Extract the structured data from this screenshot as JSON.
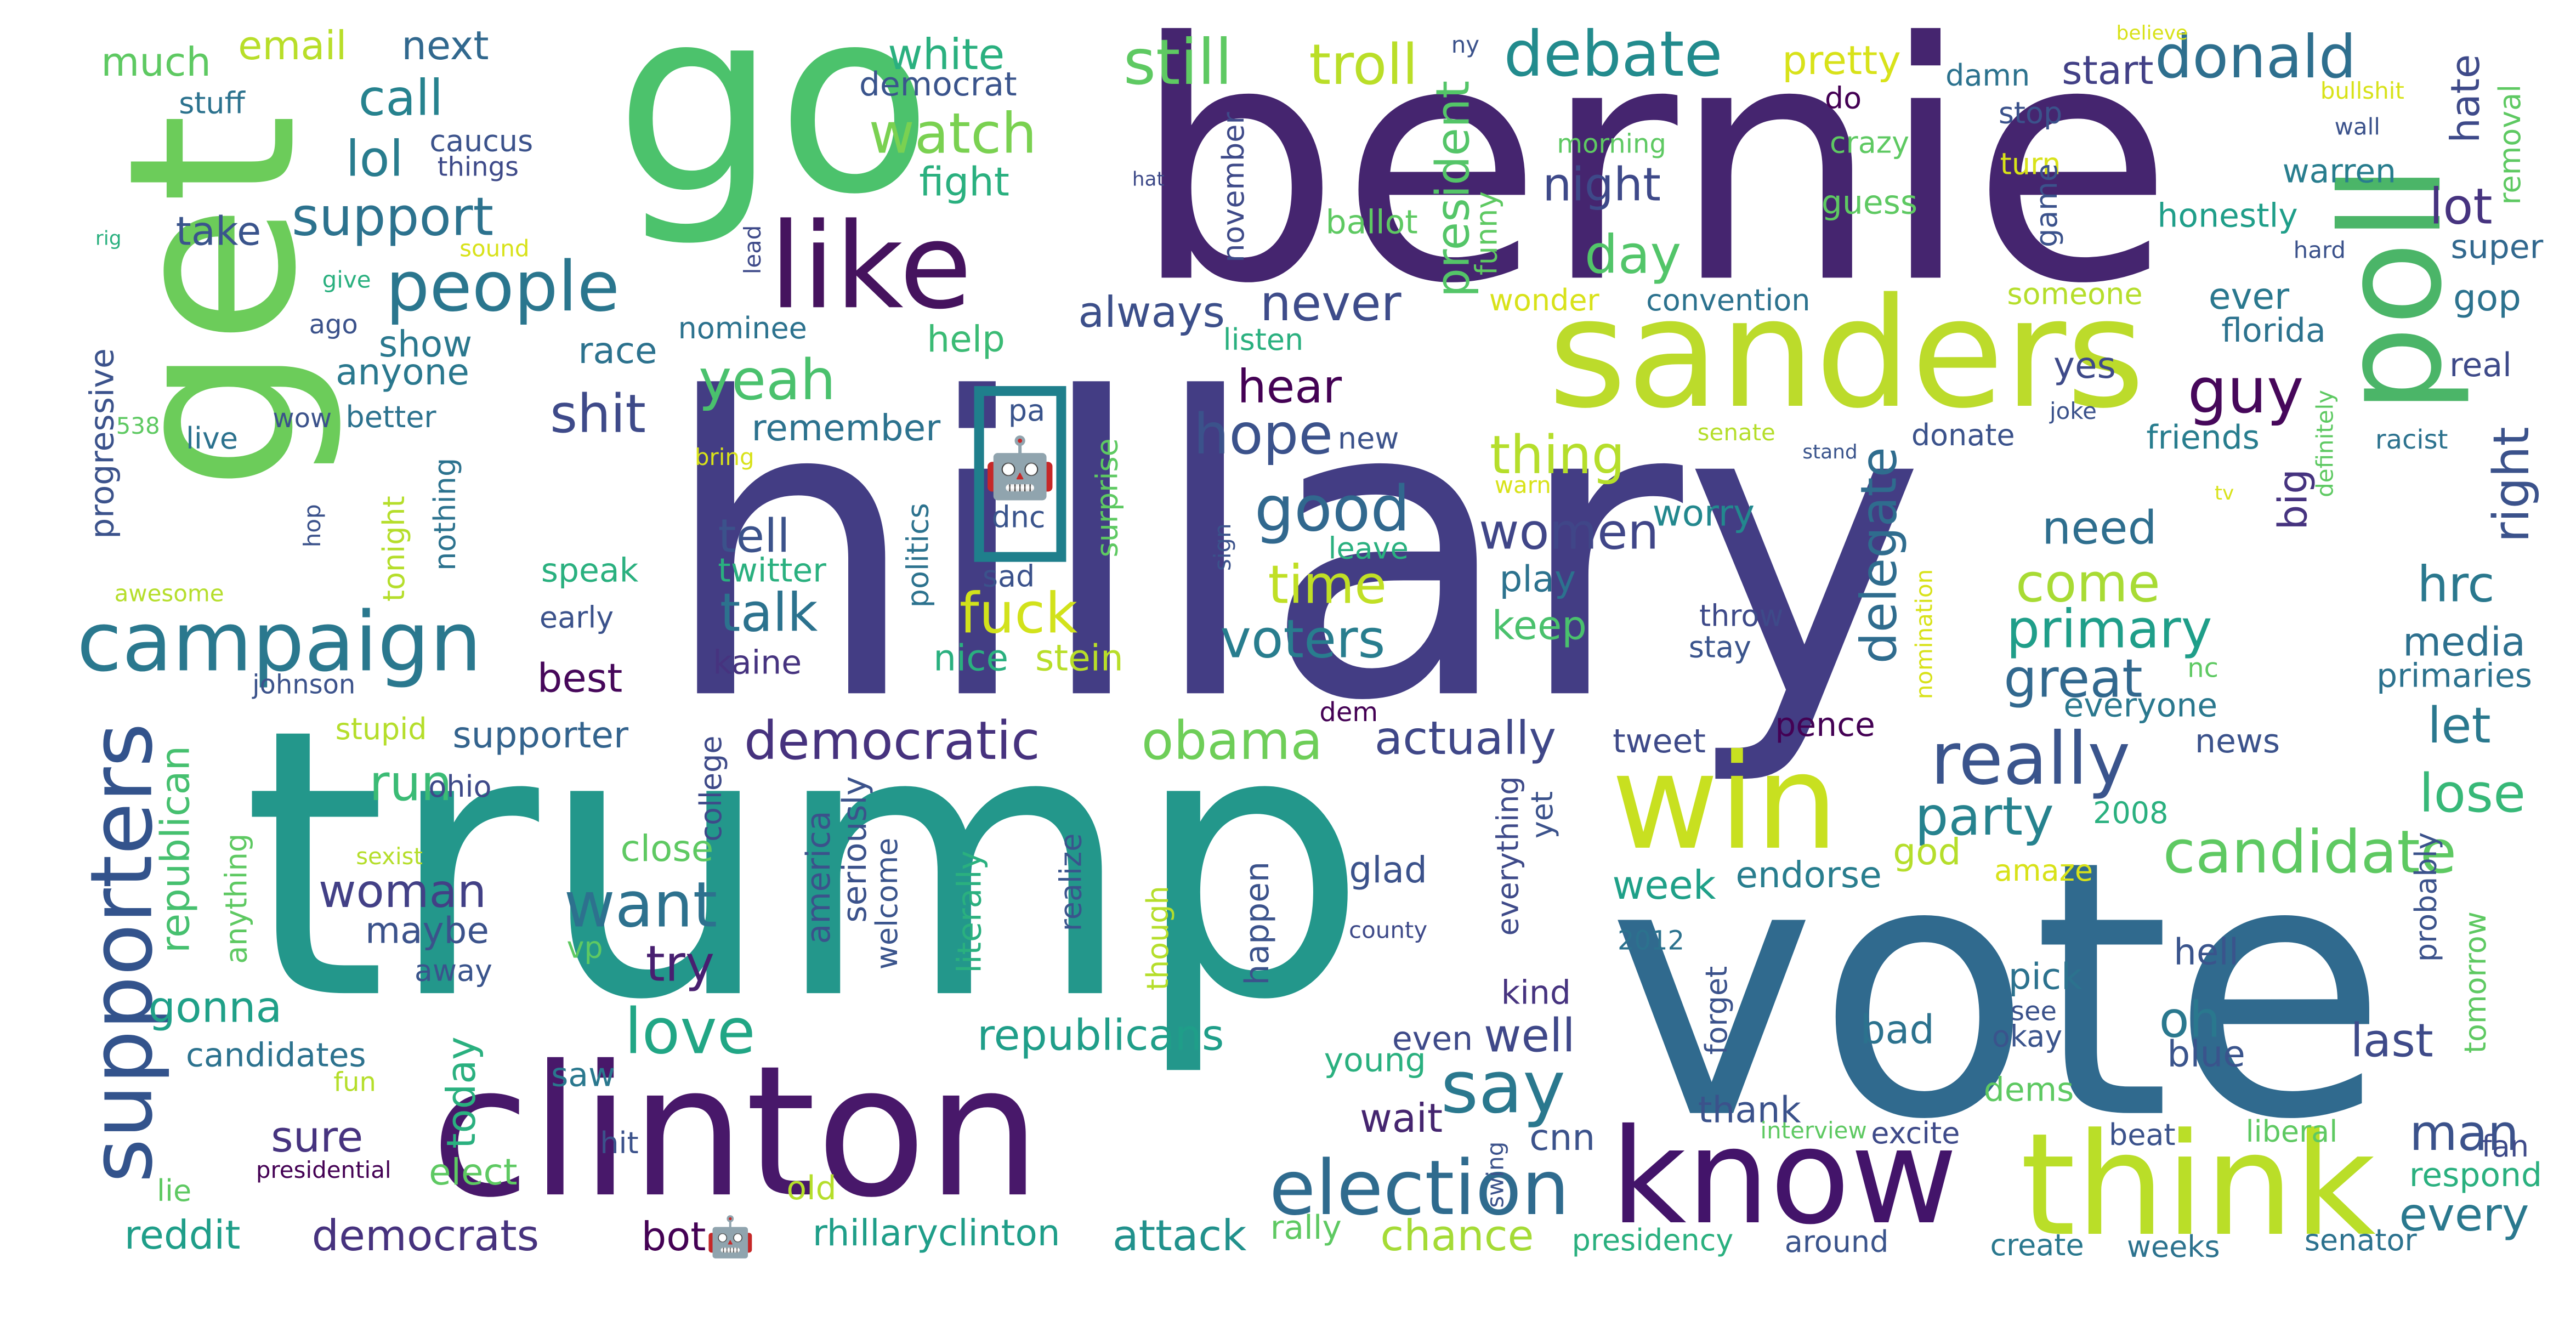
{
  "words": [
    {
      "t": "hillary",
      "c": "#433d84"
    },
    {
      "t": "trump",
      "c": "#23978b"
    },
    {
      "t": "bernie",
      "c": "#45256f"
    },
    {
      "t": "vote",
      "c": "#306a8e"
    },
    {
      "t": "go",
      "c": "#4cc26c"
    },
    {
      "t": "get",
      "c": "#6ccc5a"
    },
    {
      "t": "clinton",
      "c": "#48186a"
    },
    {
      "t": "sanders",
      "c": "#bcdb2b"
    },
    {
      "t": "think",
      "c": "#bade28"
    },
    {
      "t": "know",
      "c": "#43146a"
    },
    {
      "t": "poll",
      "c": "#4bb568"
    },
    {
      "t": "win",
      "c": "#c8e020"
    },
    {
      "t": "like",
      "c": "#45135e"
    },
    {
      "t": "campaign",
      "c": "#2a788e"
    },
    {
      "t": "supporters",
      "c": "#33538c"
    },
    {
      "t": "election",
      "c": "#2f6b8e"
    },
    {
      "t": "say",
      "c": "#2a788e"
    },
    {
      "t": "people",
      "c": "#2a768e"
    },
    {
      "t": "really",
      "c": "#3a548c"
    },
    {
      "t": "candidate",
      "c": "#5ec962"
    },
    {
      "t": "debate",
      "c": "#228b8d"
    },
    {
      "t": "donald",
      "c": "#2e6f8e"
    },
    {
      "t": "still",
      "c": "#5ec962"
    },
    {
      "t": "troll",
      "c": "#bade28"
    },
    {
      "t": "guy",
      "c": "#46075a"
    },
    {
      "t": "want",
      "c": "#2d718e"
    },
    {
      "t": "love",
      "c": "#21a685"
    },
    {
      "t": "good",
      "c": "#31688e"
    },
    {
      "t": "watch",
      "c": "#7ad151"
    },
    {
      "t": "support",
      "c": "#2c728e"
    },
    {
      "t": "call",
      "c": "#26828e"
    },
    {
      "t": "lol",
      "c": "#287c8e"
    },
    {
      "t": "shit",
      "c": "#3e4a89"
    },
    {
      "t": "yeah",
      "c": "#4ac16d"
    },
    {
      "t": "hope",
      "c": "#3b528b"
    },
    {
      "t": "talk",
      "c": "#2c728e"
    },
    {
      "t": "fuck",
      "c": "#d2e21b"
    },
    {
      "t": "time",
      "c": "#c0df25"
    },
    {
      "t": "voters",
      "c": "#287d8e"
    },
    {
      "t": "democratic",
      "c": "#46327e"
    },
    {
      "t": "obama",
      "c": "#6ece58"
    },
    {
      "t": "actually",
      "c": "#3f4788"
    },
    {
      "t": "party",
      "c": "#26828e"
    },
    {
      "t": "primary",
      "c": "#1f9e89"
    },
    {
      "t": "great",
      "c": "#31688e"
    },
    {
      "t": "come",
      "c": "#a8db34"
    },
    {
      "t": "day",
      "c": "#52c569"
    },
    {
      "t": "night",
      "c": "#3e4989"
    },
    {
      "t": "thing",
      "c": "#b5de2b"
    },
    {
      "t": "women",
      "c": "#404688"
    },
    {
      "t": "lose",
      "c": "#37b878"
    },
    {
      "t": "right",
      "c": "#3b528b"
    },
    {
      "t": "lot",
      "c": "#46337f"
    },
    {
      "t": "hrc",
      "c": "#2a788e"
    },
    {
      "t": "run",
      "c": "#3bbb75"
    },
    {
      "t": "woman",
      "c": "#424086"
    },
    {
      "t": "try",
      "c": "#481f70"
    },
    {
      "t": "oh",
      "c": "#2a788e"
    },
    {
      "t": "well",
      "c": "#3f4889"
    },
    {
      "t": "man",
      "c": "#3b528b"
    },
    {
      "t": "let",
      "c": "#2a788e"
    },
    {
      "t": "last",
      "c": "#3e4a89"
    },
    {
      "t": "tell",
      "c": "#3b528b"
    },
    {
      "t": "republicans",
      "c": "#1f9e89"
    },
    {
      "t": "democrats",
      "c": "#46327e"
    },
    {
      "t": "attack",
      "c": "#21918c"
    },
    {
      "t": "chance",
      "c": "#a5db36"
    },
    {
      "t": "never",
      "c": "#3e4c8a"
    },
    {
      "t": "hear",
      "c": "#440154"
    },
    {
      "t": "keep",
      "c": "#4ac16d"
    },
    {
      "t": "need",
      "c": "#2e6e8e"
    },
    {
      "t": "every",
      "c": "#2a788e"
    },
    {
      "t": "media",
      "c": "#2d708e"
    },
    {
      "t": "delegate",
      "c": "#2f6c8e"
    },
    {
      "t": "president",
      "c": "#54c568"
    },
    {
      "t": "always",
      "c": "#3c4f8a"
    },
    {
      "t": "white",
      "c": "#2ab07f"
    },
    {
      "t": "fight",
      "c": "#2ab07f"
    },
    {
      "t": "email",
      "c": "#b8de29"
    },
    {
      "t": "next",
      "c": "#31688e"
    },
    {
      "t": "much",
      "c": "#5ec962"
    },
    {
      "t": "pretty",
      "c": "#d8e219"
    },
    {
      "t": "start",
      "c": "#424086"
    },
    {
      "t": "hate",
      "c": "#3e4a89"
    },
    {
      "t": "gonna",
      "c": "#1fa088"
    },
    {
      "t": "sure",
      "c": "#46337f"
    },
    {
      "t": "today",
      "c": "#2ab07f"
    },
    {
      "t": "reddit",
      "c": "#1f9e89"
    },
    {
      "t": "wait",
      "c": "#45256f"
    },
    {
      "t": "bot🤖",
      "c": "#440154"
    },
    {
      "t": "rhillaryclinton",
      "c": "#1f9e89"
    },
    {
      "t": "best",
      "c": "#46075a"
    },
    {
      "t": "remember",
      "c": "#2c728e"
    },
    {
      "t": "show",
      "c": "#2a788e"
    },
    {
      "t": "anyone",
      "c": "#2a788e"
    },
    {
      "t": "republican",
      "c": "#46c06f"
    },
    {
      "t": "take",
      "c": "#3a548c"
    },
    {
      "t": "supporter",
      "c": "#33638d"
    },
    {
      "t": "maybe",
      "c": "#3b528b"
    },
    {
      "t": "close",
      "c": "#5ec962"
    },
    {
      "t": "race",
      "c": "#2c728e"
    },
    {
      "t": "help",
      "c": "#3bbb75"
    },
    {
      "t": "worry",
      "c": "#23888e"
    },
    {
      "t": "play",
      "c": "#2c728e"
    },
    {
      "t": "kaine",
      "c": "#46337f"
    },
    {
      "t": "nice",
      "c": "#2ab07f"
    },
    {
      "t": "stein",
      "c": "#b8de29"
    },
    {
      "t": "tweet",
      "c": "#3e4a89"
    },
    {
      "t": "pence",
      "c": "#440154"
    },
    {
      "t": "everyone",
      "c": "#2a788e"
    },
    {
      "t": "news",
      "c": "#3b528b"
    },
    {
      "t": "2008",
      "c": "#2ab07f"
    },
    {
      "t": "god",
      "c": "#b5de2b"
    },
    {
      "t": "amaze",
      "c": "#d8e219"
    },
    {
      "t": "endorse",
      "c": "#287d8e"
    },
    {
      "t": "week",
      "c": "#1fa088"
    },
    {
      "t": "glad",
      "c": "#3b528b"
    },
    {
      "t": "kind",
      "c": "#46337f"
    },
    {
      "t": "pick",
      "c": "#2c728e"
    },
    {
      "t": "hell",
      "c": "#3a548c"
    },
    {
      "t": "bad",
      "c": "#2c728e"
    },
    {
      "t": "blue",
      "c": "#3a548c"
    },
    {
      "t": "dems",
      "c": "#5ec962"
    },
    {
      "t": "thank",
      "c": "#3b528b"
    },
    {
      "t": "young",
      "c": "#2ab07f"
    },
    {
      "t": "even",
      "c": "#3e4a89"
    },
    {
      "t": "cnn",
      "c": "#3b528b"
    },
    {
      "t": "saw",
      "c": "#2a788e"
    },
    {
      "t": "elect",
      "c": "#5ec962"
    },
    {
      "t": "old",
      "c": "#b5de2b"
    },
    {
      "t": "hit",
      "c": "#3b528b"
    },
    {
      "t": "candidates",
      "c": "#2c728e"
    },
    {
      "t": "fun",
      "c": "#b5de2b"
    },
    {
      "t": "lie",
      "c": "#5ec962"
    },
    {
      "t": "presidential",
      "c": "#440154"
    },
    {
      "t": "rally",
      "c": "#5ec962"
    },
    {
      "t": "presidency",
      "c": "#2ab07f"
    },
    {
      "t": "around",
      "c": "#3a548c"
    },
    {
      "t": "create",
      "c": "#2a788e"
    },
    {
      "t": "weeks",
      "c": "#2c728e"
    },
    {
      "t": "senator",
      "c": "#2c728e"
    },
    {
      "t": "respond",
      "c": "#2ab07f"
    },
    {
      "t": "excite",
      "c": "#3e4a89"
    },
    {
      "t": "interview",
      "c": "#5ec962"
    },
    {
      "t": "beat",
      "c": "#3b528b"
    },
    {
      "t": "liberal",
      "c": "#5ec962"
    },
    {
      "t": "fan",
      "c": "#3e4a89"
    },
    {
      "t": "okay",
      "c": "#3a548c"
    },
    {
      "t": "see",
      "c": "#3b528b"
    },
    {
      "t": "2012",
      "c": "#2c728e"
    },
    {
      "t": "county",
      "c": "#3e4a89"
    },
    {
      "t": "yes",
      "c": "#3e4a89"
    },
    {
      "t": "joke",
      "c": "#3b528b"
    },
    {
      "t": "friends",
      "c": "#287d8e"
    },
    {
      "t": "racist",
      "c": "#2c728e"
    },
    {
      "t": "real",
      "c": "#3e4a89"
    },
    {
      "t": "big",
      "c": "#46337f"
    },
    {
      "t": "florida",
      "c": "#2c728e"
    },
    {
      "t": "ever",
      "c": "#2a788e"
    },
    {
      "t": "gop",
      "c": "#2c728e"
    },
    {
      "t": "super",
      "c": "#31688e"
    },
    {
      "t": "primaries",
      "c": "#2c728e"
    },
    {
      "t": "nc",
      "c": "#5ec962"
    },
    {
      "t": "honestly",
      "c": "#1f9e89"
    },
    {
      "t": "warren",
      "c": "#287d8e"
    },
    {
      "t": "stop",
      "c": "#3b528b"
    },
    {
      "t": "turn",
      "c": "#d8e219"
    },
    {
      "t": "guess",
      "c": "#5ec962"
    },
    {
      "t": "crazy",
      "c": "#5ec962"
    },
    {
      "t": "do",
      "c": "#440154"
    },
    {
      "t": "damn",
      "c": "#2c728e"
    },
    {
      "t": "someone",
      "c": "#b5de2b"
    },
    {
      "t": "convention",
      "c": "#2c728e"
    },
    {
      "t": "wonder",
      "c": "#d8e219"
    },
    {
      "t": "ballot",
      "c": "#5ec962"
    },
    {
      "t": "morning",
      "c": "#5ec962"
    },
    {
      "t": "donate",
      "c": "#3b528b"
    },
    {
      "t": "senate",
      "c": "#b5de2b"
    },
    {
      "t": "stand",
      "c": "#3a548c"
    },
    {
      "t": "throw",
      "c": "#3e4a89"
    },
    {
      "t": "stay",
      "c": "#3a548c"
    },
    {
      "t": "dem",
      "c": "#440154"
    },
    {
      "t": "listen",
      "c": "#2ab07f"
    },
    {
      "t": "nominee",
      "c": "#2c728e"
    },
    {
      "t": "new",
      "c": "#3b528b"
    },
    {
      "t": "leave",
      "c": "#2ab07f"
    },
    {
      "t": "warn",
      "c": "#d8e219"
    },
    {
      "t": "speak",
      "c": "#2ab07f"
    },
    {
      "t": "twitter",
      "c": "#2ab07f"
    },
    {
      "t": "early",
      "c": "#3b528b"
    },
    {
      "t": "sad",
      "c": "#3b528b"
    },
    {
      "t": "johnson",
      "c": "#3b528b"
    },
    {
      "t": "stupid",
      "c": "#b5de2b"
    },
    {
      "t": "ohio",
      "c": "#3e4a89"
    },
    {
      "t": "vp",
      "c": "#5ec962"
    },
    {
      "t": "away",
      "c": "#3a548c"
    },
    {
      "t": "sexist",
      "c": "#b5de2b"
    },
    {
      "t": "better",
      "c": "#2c728e"
    },
    {
      "t": "wow",
      "c": "#3b528b"
    },
    {
      "t": "live",
      "c": "#2c728e"
    },
    {
      "t": "538",
      "c": "#5ec962"
    },
    {
      "t": "bring",
      "c": "#d8e219"
    },
    {
      "t": "awesome",
      "c": "#b5de2b"
    },
    {
      "t": "give",
      "c": "#2ab07f"
    },
    {
      "t": "ago",
      "c": "#3b528b"
    },
    {
      "t": "sound",
      "c": "#d8e219"
    },
    {
      "t": "rig",
      "c": "#2ab07f"
    },
    {
      "t": "stuff",
      "c": "#2c728e"
    },
    {
      "t": "caucus",
      "c": "#3b528b"
    },
    {
      "t": "things",
      "c": "#3e4a89"
    },
    {
      "t": "democrat",
      "c": "#3a548c"
    },
    {
      "t": "hat",
      "c": "#3e4a89"
    },
    {
      "t": "ny",
      "c": "#3b528b"
    },
    {
      "t": "believe",
      "c": "#d8e219"
    },
    {
      "t": "bullshit",
      "c": "#d8e219"
    },
    {
      "t": "wall",
      "c": "#3b528b"
    },
    {
      "t": "hard",
      "c": "#3b528b"
    },
    {
      "t": "tv",
      "c": "#d8e219"
    },
    {
      "t": "sign",
      "c": "#3b528b"
    },
    {
      "t": "pa",
      "c": "#3a548c"
    },
    {
      "t": "dnc",
      "c": "#3a548c"
    },
    {
      "t": "progressive",
      "c": "#3b528b"
    },
    {
      "t": "hop",
      "c": "#3b528b"
    },
    {
      "t": "tonight",
      "c": "#b5de2b"
    },
    {
      "t": "nothing",
      "c": "#2c728e"
    },
    {
      "t": "anything",
      "c": "#5ec962"
    },
    {
      "t": "college",
      "c": "#3e4a89"
    },
    {
      "t": "america",
      "c": "#3b528b"
    },
    {
      "t": "seriously",
      "c": "#3b528b"
    },
    {
      "t": "welcome",
      "c": "#3a548c"
    },
    {
      "t": "literally",
      "c": "#2ab07f"
    },
    {
      "t": "realize",
      "c": "#3a548c"
    },
    {
      "t": "though",
      "c": "#b5de2b"
    },
    {
      "t": "happen",
      "c": "#3b528b"
    },
    {
      "t": "politics",
      "c": "#2c728e"
    },
    {
      "t": "surprise",
      "c": "#5ec962"
    },
    {
      "t": "lead",
      "c": "#3e4a89"
    },
    {
      "t": "november",
      "c": "#3e4a89"
    },
    {
      "t": "funny",
      "c": "#5ec962"
    },
    {
      "t": "everything",
      "c": "#3e4a89"
    },
    {
      "t": "yet",
      "c": "#3b528b"
    },
    {
      "t": "swing",
      "c": "#3b528b"
    },
    {
      "t": "forget",
      "c": "#3b528b"
    },
    {
      "t": "nomination",
      "c": "#d8e219"
    },
    {
      "t": "game",
      "c": "#3b528b"
    },
    {
      "t": "tomorrow",
      "c": "#5ec962"
    },
    {
      "t": "probably",
      "c": "#3b528b"
    },
    {
      "t": "definitely",
      "c": "#5ec962"
    },
    {
      "t": "removal",
      "c": "#5ec962"
    },
    {
      "t": "🤖",
      "c": "#1f7f8c"
    }
  ]
}
